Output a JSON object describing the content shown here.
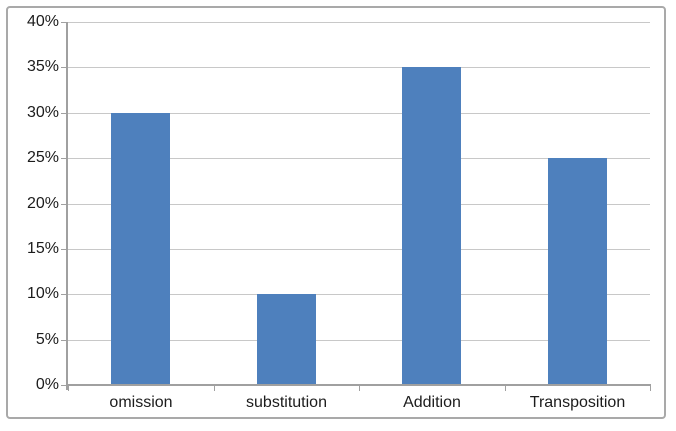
{
  "chart_data": {
    "type": "bar",
    "categories": [
      "omission",
      "substitution",
      "Addition",
      "Transposition"
    ],
    "values": [
      30,
      10,
      35,
      25
    ],
    "value_unit": "%",
    "xlabel": "",
    "ylabel": "",
    "ylim": [
      0,
      40
    ],
    "ytick_step": 5,
    "ytick_labels": [
      "0%",
      "5%",
      "10%",
      "15%",
      "20%",
      "25%",
      "30%",
      "35%",
      "40%"
    ],
    "grid": true,
    "legend_position": "none",
    "colors": {
      "bar": "#4E80BD",
      "gridline": "#C8C8C8",
      "axis": "#A0A0A0",
      "text": "#1C1C1C",
      "frame_border": "#A9A9A9",
      "background": "#FFFFFF"
    }
  }
}
